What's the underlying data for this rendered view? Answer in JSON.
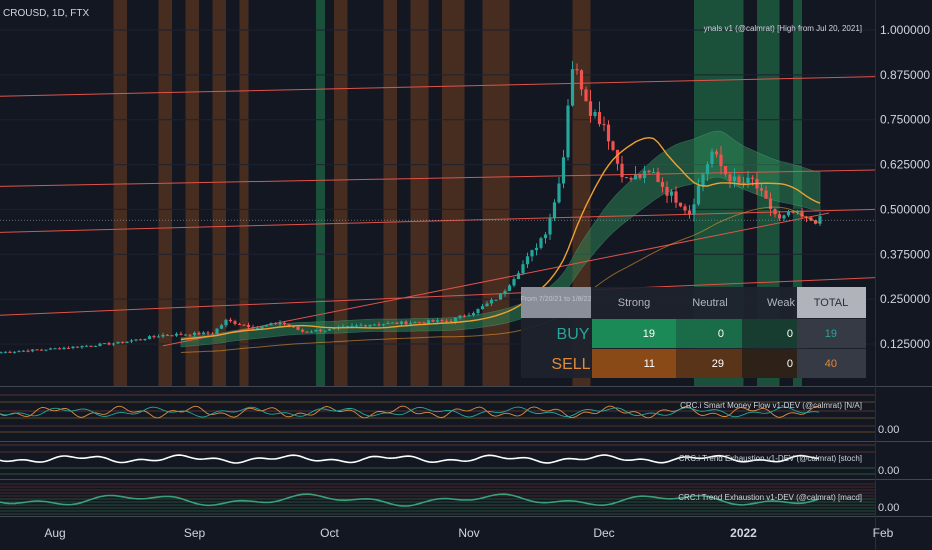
{
  "header": {
    "symbol": "CROUSD, 1D, FTX",
    "overlay_title": "ynals v1 (@calmrat) [High from Jul 20, 2021]"
  },
  "colors": {
    "background": "#131722",
    "up": "#26a69a",
    "down": "#ef5350",
    "trendline": "#e0534a",
    "ma": "#f0a030",
    "band": "#2e8b57",
    "sell_zone": "#5a3420",
    "buy_zone": "#1d5a3e",
    "axis_text": "#d1d4dc"
  },
  "axis": {
    "price_ticks": [
      "1.000000",
      "0.875000",
      "0.750000",
      "0.625000",
      "0.500000",
      "0.375000",
      "0.250000",
      "0.125000"
    ],
    "months": [
      "Aug",
      "Sep",
      "Oct",
      "Nov",
      "Dec",
      "2022",
      "Feb"
    ],
    "sub_ticks": [
      "0.00",
      "0.00",
      "0.00"
    ]
  },
  "indicators": [
    {
      "label": "CRC.i Smart Money Flow v1-DEV (@calmrat) [N/A]"
    },
    {
      "label": "CRC.i Trend Exhaustion v1-DEV (@calmrat) [stoch]"
    },
    {
      "label": "CRC.i Trend Exhaustion v1-DEV (@calmrat) [macd]"
    }
  ],
  "signal_table": {
    "corner_text": "From 7/20/21 to 1/8/22",
    "columns": [
      "Strong",
      "Neutral",
      "Weak",
      "TOTAL"
    ],
    "rows": [
      {
        "label": "BUY",
        "values": [
          "19",
          "0",
          "0",
          "19"
        ]
      },
      {
        "label": "SELL",
        "values": [
          "11",
          "29",
          "0",
          "40"
        ]
      }
    ]
  },
  "chart_data": {
    "type": "candlestick",
    "symbol": "CROUSD",
    "interval": "1D",
    "exchange": "FTX",
    "ylim": [
      0.05,
      1.06
    ],
    "x_ticks": [
      "Aug",
      "Sep",
      "Oct",
      "Nov",
      "Dec",
      "2022",
      "Feb"
    ],
    "y_ticks": [
      1.0,
      0.875,
      0.75,
      0.625,
      0.5,
      0.375,
      0.25,
      0.125
    ],
    "close_series": {
      "start": "2021-07-20",
      "step_days": 1,
      "anchors": [
        [
          "2021-07-20",
          0.102
        ],
        [
          "2021-08-01",
          0.112
        ],
        [
          "2021-08-15",
          0.128
        ],
        [
          "2021-08-25",
          0.15
        ],
        [
          "2021-09-05",
          0.155
        ],
        [
          "2021-09-08",
          0.19
        ],
        [
          "2021-09-15",
          0.17
        ],
        [
          "2021-09-20",
          0.185
        ],
        [
          "2021-09-25",
          0.16
        ],
        [
          "2021-10-01",
          0.165
        ],
        [
          "2021-10-10",
          0.18
        ],
        [
          "2021-10-20",
          0.185
        ],
        [
          "2021-10-28",
          0.19
        ],
        [
          "2021-11-03",
          0.22
        ],
        [
          "2021-11-08",
          0.26
        ],
        [
          "2021-11-12",
          0.33
        ],
        [
          "2021-11-15",
          0.38
        ],
        [
          "2021-11-18",
          0.44
        ],
        [
          "2021-11-20",
          0.52
        ],
        [
          "2021-11-22",
          0.65
        ],
        [
          "2021-11-23",
          0.8
        ],
        [
          "2021-11-24",
          0.9
        ],
        [
          "2021-11-26",
          0.85
        ],
        [
          "2021-11-28",
          0.78
        ],
        [
          "2021-12-01",
          0.74
        ],
        [
          "2021-12-04",
          0.63
        ],
        [
          "2021-12-06",
          0.58
        ],
        [
          "2021-12-08",
          0.59
        ],
        [
          "2021-12-12",
          0.6
        ],
        [
          "2021-12-15",
          0.55
        ],
        [
          "2021-12-18",
          0.52
        ],
        [
          "2021-12-20",
          0.49
        ],
        [
          "2021-12-23",
          0.6
        ],
        [
          "2021-12-25",
          0.66
        ],
        [
          "2021-12-28",
          0.6
        ],
        [
          "2021-12-31",
          0.57
        ],
        [
          "2022-01-03",
          0.58
        ],
        [
          "2022-01-06",
          0.52
        ],
        [
          "2022-01-09",
          0.47
        ],
        [
          "2022-01-12",
          0.49
        ],
        [
          "2022-01-15",
          0.47
        ],
        [
          "2022-01-18",
          0.47
        ]
      ]
    },
    "last_price": 0.47,
    "trendlines": [
      {
        "from": [
          "2021-07-01",
          0.81
        ],
        "to": [
          "2022-02-27",
          0.87
        ]
      },
      {
        "from": [
          "2021-07-01",
          0.56
        ],
        "to": [
          "2022-02-27",
          0.61
        ]
      },
      {
        "from": [
          "2021-07-01",
          0.43
        ],
        "to": [
          "2022-02-27",
          0.5
        ]
      },
      {
        "from": [
          "2021-07-01",
          0.195
        ],
        "to": [
          "2022-02-27",
          0.31
        ]
      },
      {
        "from": [
          "2021-08-25",
          0.12
        ],
        "to": [
          "2022-01-20",
          0.49
        ]
      }
    ],
    "sell_zones": [
      [
        "2021-08-14",
        "2021-08-17"
      ],
      [
        "2021-08-24",
        "2021-08-27"
      ],
      [
        "2021-08-30",
        "2021-09-02"
      ],
      [
        "2021-09-05",
        "2021-09-08"
      ],
      [
        "2021-09-11",
        "2021-09-13"
      ],
      [
        "2021-10-02",
        "2021-10-05"
      ],
      [
        "2021-10-13",
        "2021-10-16"
      ],
      [
        "2021-10-19",
        "2021-10-23"
      ],
      [
        "2021-10-26",
        "2021-10-31"
      ],
      [
        "2021-11-04",
        "2021-11-10"
      ],
      [
        "2021-11-24",
        "2021-11-28"
      ]
    ],
    "buy_zones": [
      [
        "2021-09-28",
        "2021-09-30"
      ],
      [
        "2021-12-21",
        "2022-01-01"
      ],
      [
        "2022-01-04",
        "2022-01-09"
      ],
      [
        "2022-01-12",
        "2022-01-14"
      ]
    ],
    "last_bar": "2022-01-18"
  }
}
